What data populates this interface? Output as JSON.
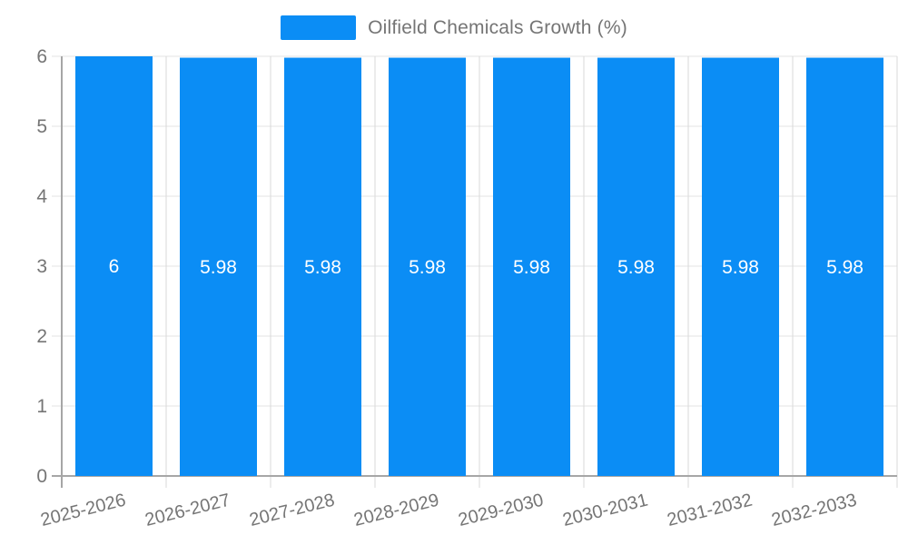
{
  "legend": {
    "label": "Oilfield Chemicals Growth (%)"
  },
  "colors": {
    "bar": "#0b8df5",
    "gridline": "#e3e3e3",
    "vgridline": "#d9d9d9",
    "axis_line": "#a6a6a6",
    "axis_label": "#757575",
    "value_label": "#ffffff",
    "legend_text": "#757575",
    "background": "#ffffff"
  },
  "chart_data": {
    "type": "bar",
    "title": "",
    "xlabel": "",
    "ylabel": "",
    "legend_entries": [
      "Oilfield Chemicals Growth (%)"
    ],
    "legend_position": "top-center",
    "grid": true,
    "categories": [
      "2025-2026",
      "2026-2027",
      "2027-2028",
      "2028-2029",
      "2029-2030",
      "2030-2031",
      "2031-2032",
      "2032-2033"
    ],
    "values": [
      6,
      5.98,
      5.98,
      5.98,
      5.98,
      5.98,
      5.98,
      5.98
    ],
    "value_labels": [
      "6",
      "5.98",
      "5.98",
      "5.98",
      "5.98",
      "5.98",
      "5.98",
      "5.98"
    ],
    "ylim": [
      0,
      6
    ],
    "yticks": [
      0,
      1,
      2,
      3,
      4,
      5,
      6
    ]
  }
}
